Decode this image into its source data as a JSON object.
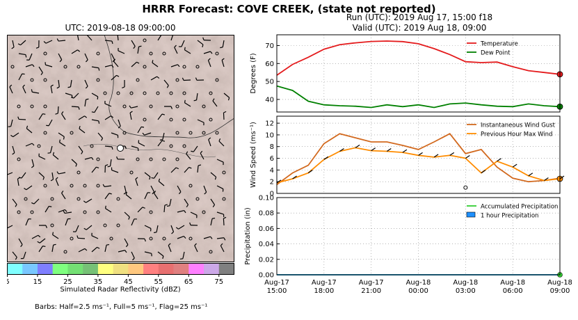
{
  "header": {
    "title": "HRRR Forecast: COVE CREEK, (state not reported)",
    "map_title": "UTC: 2019-08-18 09:00:00",
    "run_line": "Run (UTC): 2019 Aug 17, 15:00 f18",
    "valid_line": "Valid (UTC): 2019 Aug 18, 09:00"
  },
  "colorbar": {
    "label": "Simulated Radar Reflectivity (dBZ)",
    "ticks": [
      "5",
      "15",
      "25",
      "35",
      "45",
      "55",
      "65",
      "75"
    ],
    "colors": [
      "#80ffff",
      "#79c8ff",
      "#7f7fff",
      "#7fff7f",
      "#74e074",
      "#76c176",
      "#ffff80",
      "#f0e080",
      "#ffc87f",
      "#ff8080",
      "#e87070",
      "#e08080",
      "#ff80ff",
      "#cca8e8",
      "#808080"
    ]
  },
  "footer": {
    "barbs_text": "Barbs: Half=2.5 ms⁻¹, Full=5 ms⁻¹, Flag=25 ms⁻¹"
  },
  "x_tick_labels": [
    [
      "Aug-17",
      "15:00"
    ],
    [
      "Aug-17",
      "18:00"
    ],
    [
      "Aug-17",
      "21:00"
    ],
    [
      "Aug-18",
      "00:00"
    ],
    [
      "Aug-18",
      "03:00"
    ],
    [
      "Aug-18",
      "06:00"
    ],
    [
      "Aug-18",
      "09:00"
    ]
  ],
  "chart_data": [
    {
      "type": "line",
      "title": "",
      "ylabel": "Degrees (F)",
      "ylim": [
        33,
        76
      ],
      "yticks": [
        40,
        50,
        60,
        70
      ],
      "x": [
        "15:00",
        "16:00",
        "17:00",
        "18:00",
        "19:00",
        "20:00",
        "21:00",
        "22:00",
        "23:00",
        "00:00",
        "01:00",
        "02:00",
        "03:00",
        "04:00",
        "05:00",
        "06:00",
        "07:00",
        "08:00",
        "09:00"
      ],
      "series": [
        {
          "name": "Temperature",
          "color": "#e41a1c",
          "values": [
            53.5,
            59.5,
            63.5,
            68,
            70.5,
            71.5,
            72.3,
            72.5,
            72.2,
            71,
            68.3,
            65,
            61,
            60.5,
            60.8,
            58.2,
            56,
            55,
            54
          ]
        },
        {
          "name": "Dew Point",
          "color": "#008000",
          "values": [
            47.5,
            45,
            39,
            37,
            36.5,
            36.2,
            35.5,
            37,
            36,
            37,
            35.5,
            37.5,
            38,
            37,
            36.2,
            36,
            37.5,
            36.5,
            36
          ]
        }
      ],
      "grid": true,
      "legend": "top-right"
    },
    {
      "type": "line",
      "title": "",
      "ylabel": "Wind Speed (ms⁻¹)",
      "ylim": [
        0,
        13.2
      ],
      "yticks": [
        0,
        2,
        4,
        6,
        8,
        10,
        12
      ],
      "x": [
        "15:00",
        "16:00",
        "17:00",
        "18:00",
        "19:00",
        "20:00",
        "21:00",
        "22:00",
        "23:00",
        "00:00",
        "01:00",
        "02:00",
        "03:00",
        "04:00",
        "05:00",
        "06:00",
        "07:00",
        "08:00",
        "09:00"
      ],
      "series": [
        {
          "name": "Instantaneous Wind Gust",
          "color": "#d2691e",
          "values": [
            1.5,
            3.5,
            4.8,
            8.5,
            10.2,
            9.5,
            8.8,
            8.8,
            8.2,
            7.5,
            8.8,
            10.2,
            6.8,
            7.5,
            4.5,
            2.6,
            2.0,
            2.2,
            2.6
          ]
        },
        {
          "name": "Previous Hour Max Wind",
          "color": "#ff8c00",
          "values": [
            1.8,
            2.5,
            3.5,
            5.8,
            7.2,
            7.8,
            7.3,
            7.2,
            7.0,
            6.5,
            6.2,
            6.5,
            6.0,
            3.5,
            5.5,
            4.5,
            3.0,
            2.2,
            2.5
          ]
        }
      ],
      "grid": true,
      "legend": "top-right"
    },
    {
      "type": "line",
      "title": "",
      "ylabel": "Precipitation (in)",
      "ylim": [
        0,
        0.1
      ],
      "yticks": [
        "0.00",
        "0.02",
        "0.04",
        "0.06",
        "0.08",
        "0.10"
      ],
      "x": [
        "15:00",
        "16:00",
        "17:00",
        "18:00",
        "19:00",
        "20:00",
        "21:00",
        "22:00",
        "23:00",
        "00:00",
        "01:00",
        "02:00",
        "03:00",
        "04:00",
        "05:00",
        "06:00",
        "07:00",
        "08:00",
        "09:00"
      ],
      "series": [
        {
          "name": "Accumulated Precipitation",
          "color": "#32cd32",
          "values": [
            0,
            0,
            0,
            0,
            0,
            0,
            0,
            0,
            0,
            0,
            0,
            0,
            0,
            0,
            0,
            0,
            0,
            0,
            0
          ]
        },
        {
          "name": "1 hour Precipitation",
          "color": "#1e90ff",
          "values": [
            0,
            0,
            0,
            0,
            0,
            0,
            0,
            0,
            0,
            0,
            0,
            0,
            0,
            0,
            0,
            0,
            0,
            0,
            0
          ]
        }
      ],
      "grid": true,
      "legend": "top-right"
    }
  ]
}
